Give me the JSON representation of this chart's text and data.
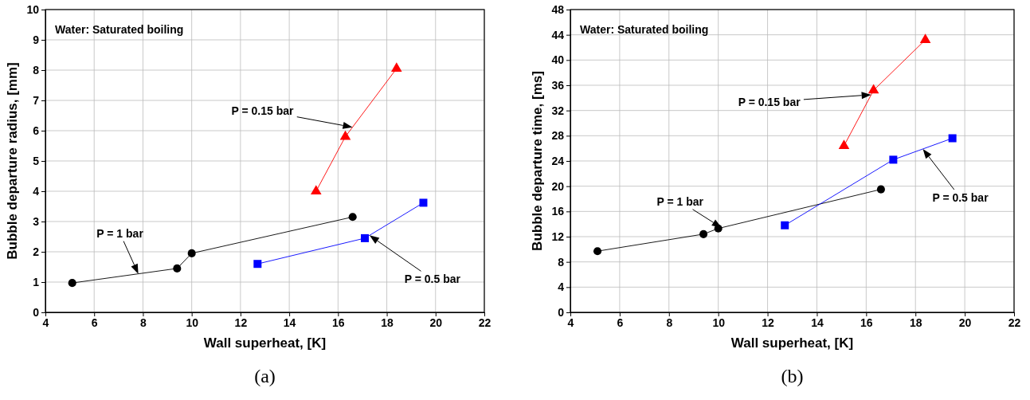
{
  "chart_data": [
    {
      "type": "line",
      "xlabel": "Wall superheat, [K]",
      "ylabel": "Bubble departure radius, [mm]",
      "xlim": [
        4,
        22
      ],
      "xticks": [
        4,
        6,
        8,
        10,
        12,
        14,
        16,
        18,
        20,
        22
      ],
      "ylim": [
        0,
        10
      ],
      "yticks": [
        0,
        1,
        2,
        3,
        4,
        5,
        6,
        7,
        8,
        9,
        10
      ],
      "grid": true,
      "series": [
        {
          "name": "P = 1 bar",
          "color": "#000000",
          "marker": "circle",
          "x": [
            5.1,
            9.4,
            10,
            16.6
          ],
          "values": [
            0.97,
            1.45,
            1.95,
            3.15
          ]
        },
        {
          "name": "P = 0.5 bar",
          "color": "#0000ff",
          "marker": "square",
          "x": [
            12.7,
            17.1,
            19.5
          ],
          "values": [
            1.6,
            2.45,
            3.62
          ]
        },
        {
          "name": "P = 0.15 bar",
          "color": "#ff0000",
          "marker": "triangle",
          "x": [
            15.1,
            16.3,
            18.4
          ],
          "values": [
            4.0,
            5.8,
            8.05
          ]
        }
      ],
      "annotations": [
        "Water: Saturated boiling",
        "(a)"
      ]
    },
    {
      "type": "line",
      "xlabel": "Wall superheat, [K]",
      "ylabel": "Bubble departure time, [ms]",
      "xlim": [
        4,
        22
      ],
      "xticks": [
        4,
        6,
        8,
        10,
        12,
        14,
        16,
        18,
        20,
        22
      ],
      "ylim": [
        0,
        48
      ],
      "yticks": [
        0,
        4,
        8,
        12,
        16,
        20,
        24,
        28,
        32,
        36,
        40,
        44,
        48
      ],
      "grid": true,
      "series": [
        {
          "name": "P = 1 bar",
          "color": "#000000",
          "marker": "circle",
          "x": [
            5.1,
            9.4,
            10,
            16.6
          ],
          "values": [
            9.7,
            12.4,
            13.3,
            19.5
          ]
        },
        {
          "name": "P = 0.5 bar",
          "color": "#0000ff",
          "marker": "square",
          "x": [
            12.7,
            17.1,
            19.5
          ],
          "values": [
            13.8,
            24.2,
            27.6
          ]
        },
        {
          "name": "P = 0.15 bar",
          "color": "#ff0000",
          "marker": "triangle",
          "x": [
            15.1,
            16.3,
            18.4
          ],
          "values": [
            26.4,
            35.2,
            43.2
          ]
        }
      ],
      "annotations": [
        "Water: Saturated boiling",
        "(b)"
      ]
    }
  ]
}
